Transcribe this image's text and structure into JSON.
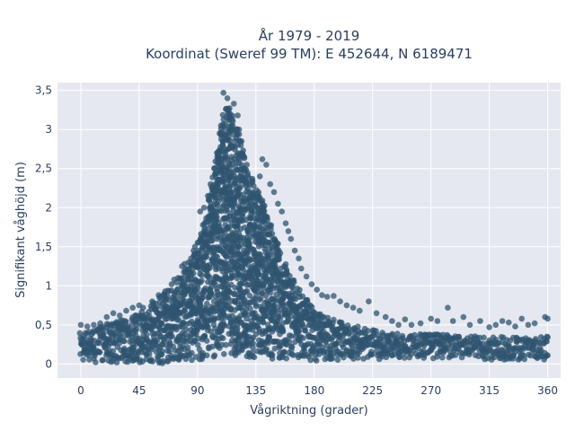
{
  "chart_data": {
    "type": "scatter",
    "title_line1": "År 1979 - 2019",
    "title_line2": "Koordinat (Sweref 99 TM): E 452644, N 6189471",
    "xlabel": "Vågriktning (grader)",
    "ylabel": "Signifikant våghöjd (m)",
    "xlim": [
      -18,
      370
    ],
    "ylim": [
      -0.18,
      3.6
    ],
    "x_ticks": [
      0,
      45,
      90,
      135,
      180,
      225,
      270,
      315,
      360
    ],
    "x_tick_labels": [
      "0",
      "45",
      "90",
      "135",
      "180",
      "225",
      "270",
      "315",
      "360"
    ],
    "y_ticks": [
      0,
      0.5,
      1,
      1.5,
      2,
      2.5,
      3,
      3.5
    ],
    "y_tick_labels": [
      "0",
      "0,5",
      "1",
      "1,5",
      "2",
      "2,5",
      "3",
      "3,5"
    ],
    "grid": true,
    "marker_color": "#2f5470",
    "plot_background": "#e5e8f0",
    "envelope": {
      "x": [
        0,
        10,
        20,
        30,
        40,
        50,
        60,
        70,
        80,
        90,
        95,
        100,
        105,
        110,
        115,
        120,
        125,
        130,
        135,
        140,
        145,
        150,
        160,
        170,
        180,
        190,
        200,
        210,
        220,
        230,
        240,
        250,
        260,
        270,
        280,
        290,
        300,
        310,
        320,
        330,
        340,
        350,
        360
      ],
      "upper": [
        0.42,
        0.45,
        0.52,
        0.56,
        0.62,
        0.72,
        0.85,
        1.0,
        1.2,
        1.5,
        1.85,
        2.25,
        2.8,
        3.25,
        3.3,
        3.05,
        2.75,
        2.45,
        2.25,
        2.1,
        1.9,
        1.6,
        1.2,
        0.9,
        0.7,
        0.6,
        0.55,
        0.5,
        0.45,
        0.42,
        0.4,
        0.38,
        0.38,
        0.4,
        0.38,
        0.36,
        0.36,
        0.35,
        0.35,
        0.35,
        0.34,
        0.34,
        0.35
      ],
      "lower": [
        0.02,
        0.02,
        0.02,
        0.01,
        0.01,
        0.0,
        0.0,
        0.02,
        0.03,
        0.05,
        0.06,
        0.07,
        0.09,
        0.1,
        0.11,
        0.11,
        0.1,
        0.09,
        0.08,
        0.07,
        0.06,
        0.05,
        0.04,
        0.04,
        0.04,
        0.05,
        0.05,
        0.06,
        0.06,
        0.06,
        0.06,
        0.06,
        0.06,
        0.06,
        0.05,
        0.05,
        0.05,
        0.05,
        0.05,
        0.05,
        0.05,
        0.05,
        0.05
      ]
    },
    "outliers": [
      [
        110,
        3.47
      ],
      [
        113,
        3.4
      ],
      [
        118,
        3.33
      ],
      [
        121,
        3.18
      ],
      [
        115,
        3.2
      ],
      [
        108,
        3.05
      ],
      [
        107,
        2.95
      ],
      [
        122,
        3.0
      ],
      [
        124,
        2.85
      ],
      [
        126,
        2.65
      ],
      [
        128,
        2.55
      ],
      [
        140,
        2.62
      ],
      [
        143,
        2.55
      ],
      [
        138,
        2.4
      ],
      [
        146,
        2.3
      ],
      [
        149,
        2.2
      ],
      [
        152,
        2.05
      ],
      [
        155,
        1.95
      ],
      [
        158,
        1.8
      ],
      [
        160,
        1.7
      ],
      [
        162,
        1.6
      ],
      [
        165,
        1.45
      ],
      [
        168,
        1.35
      ],
      [
        170,
        1.22
      ],
      [
        174,
        1.12
      ],
      [
        178,
        1.02
      ],
      [
        182,
        0.95
      ],
      [
        186,
        0.88
      ],
      [
        190,
        0.86
      ],
      [
        195,
        0.87
      ],
      [
        200,
        0.8
      ],
      [
        205,
        0.75
      ],
      [
        210,
        0.72
      ],
      [
        215,
        0.68
      ],
      [
        222,
        0.8
      ],
      [
        228,
        0.65
      ],
      [
        235,
        0.6
      ],
      [
        240,
        0.55
      ],
      [
        245,
        0.5
      ],
      [
        250,
        0.57
      ],
      [
        255,
        0.5
      ],
      [
        262,
        0.52
      ],
      [
        270,
        0.58
      ],
      [
        275,
        0.55
      ],
      [
        283,
        0.72
      ],
      [
        287,
        0.55
      ],
      [
        295,
        0.6
      ],
      [
        300,
        0.5
      ],
      [
        308,
        0.55
      ],
      [
        315,
        0.47
      ],
      [
        320,
        0.5
      ],
      [
        325,
        0.55
      ],
      [
        330,
        0.53
      ],
      [
        335,
        0.48
      ],
      [
        340,
        0.58
      ],
      [
        345,
        0.5
      ],
      [
        350,
        0.52
      ],
      [
        358,
        0.6
      ],
      [
        360,
        0.58
      ],
      [
        60,
        0.88
      ],
      [
        65,
        0.93
      ],
      [
        70,
        1.02
      ],
      [
        72,
        1.08
      ],
      [
        75,
        1.1
      ],
      [
        78,
        1.25
      ],
      [
        80,
        1.28
      ],
      [
        83,
        1.3
      ],
      [
        85,
        1.35
      ],
      [
        87,
        1.45
      ],
      [
        88,
        1.5
      ],
      [
        90,
        1.55
      ],
      [
        92,
        1.95
      ],
      [
        95,
        2.0
      ],
      [
        98,
        2.15
      ],
      [
        100,
        2.3
      ],
      [
        103,
        2.5
      ],
      [
        105,
        2.7
      ],
      [
        55,
        0.8
      ],
      [
        48,
        0.72
      ],
      [
        45,
        0.75
      ],
      [
        40,
        0.72
      ],
      [
        35,
        0.68
      ],
      [
        30,
        0.62
      ],
      [
        25,
        0.65
      ],
      [
        20,
        0.6
      ],
      [
        15,
        0.52
      ],
      [
        10,
        0.5
      ],
      [
        5,
        0.48
      ],
      [
        0,
        0.5
      ]
    ]
  }
}
